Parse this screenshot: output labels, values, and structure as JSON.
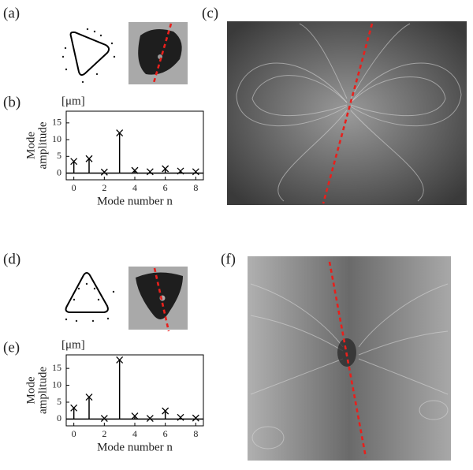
{
  "panel_labels": [
    "(a)",
    "(b)",
    "(c)",
    "(d)",
    "(e)",
    "(f)"
  ],
  "chart_data": [
    {
      "type": "stem",
      "y_unit": "[μm]",
      "ylabel": [
        "Mode",
        "amplitude"
      ],
      "xlabel": "Mode number n",
      "x": [
        0,
        1,
        2,
        3,
        4,
        5,
        6,
        7,
        8
      ],
      "values": [
        3.5,
        4.3,
        0.3,
        12,
        0.8,
        0.4,
        1.3,
        0.6,
        0.4
      ],
      "xlim": [
        -0.5,
        8.5
      ],
      "xticks": [
        0,
        2,
        4,
        6,
        8
      ],
      "ylim": [
        -2,
        18.5
      ],
      "yticks": [
        0,
        5,
        10,
        15
      ],
      "color": "#000000"
    },
    {
      "type": "stem",
      "y_unit": "[μm]",
      "ylabel": [
        "Mode",
        "amplitude"
      ],
      "xlabel": "Mode number n",
      "x": [
        0,
        1,
        2,
        3,
        4,
        5,
        6,
        7,
        8
      ],
      "values": [
        3.3,
        6.5,
        0.2,
        17.5,
        0.9,
        0.2,
        2.4,
        0.5,
        0.3
      ],
      "xlim": [
        -0.5,
        8.5
      ],
      "xticks": [
        0,
        2,
        4,
        6,
        8
      ],
      "ylim": [
        -2,
        19
      ],
      "yticks": [
        0,
        5,
        10,
        15
      ],
      "color": "#000000"
    }
  ]
}
